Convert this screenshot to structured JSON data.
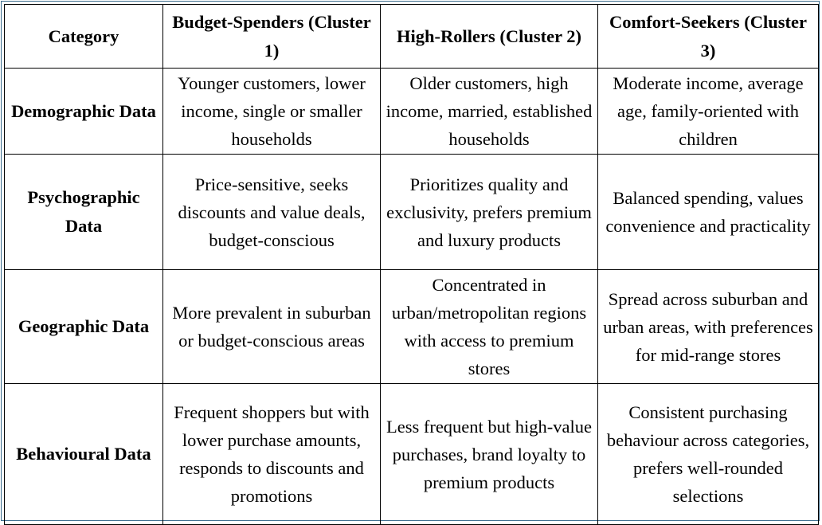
{
  "table": {
    "headers": [
      "Category",
      "Budget-Spenders (Cluster 1)",
      "High-Rollers (Cluster 2)",
      "Comfort-Seekers (Cluster 3)"
    ],
    "rows": [
      {
        "category": "Demographic Data",
        "cells": [
          "Younger customers, lower income, single or smaller households",
          "Older customers, high income, married, established households",
          "Moderate income, average age, family-oriented with children"
        ]
      },
      {
        "category": "Psychographic Data",
        "cells": [
          "Price-sensitive, seeks discounts and value deals, budget-conscious",
          "Prioritizes quality and exclusivity, prefers premium and luxury products",
          "Balanced spending, values convenience and practicality"
        ]
      },
      {
        "category": "Geographic Data",
        "cells": [
          "More prevalent in suburban or budget-conscious areas",
          "Concentrated in urban/metropolitan regions with access to premium stores",
          "Spread across suburban and urban areas, with preferences for mid-range stores"
        ]
      },
      {
        "category": "Behavioural Data",
        "cells": [
          "Frequent shoppers but with lower purchase amounts, responds to discounts and promotions",
          "Less frequent but high-value purchases, brand loyalty to premium products",
          "Consistent purchasing behaviour across categories, prefers well-rounded selections"
        ]
      }
    ]
  }
}
